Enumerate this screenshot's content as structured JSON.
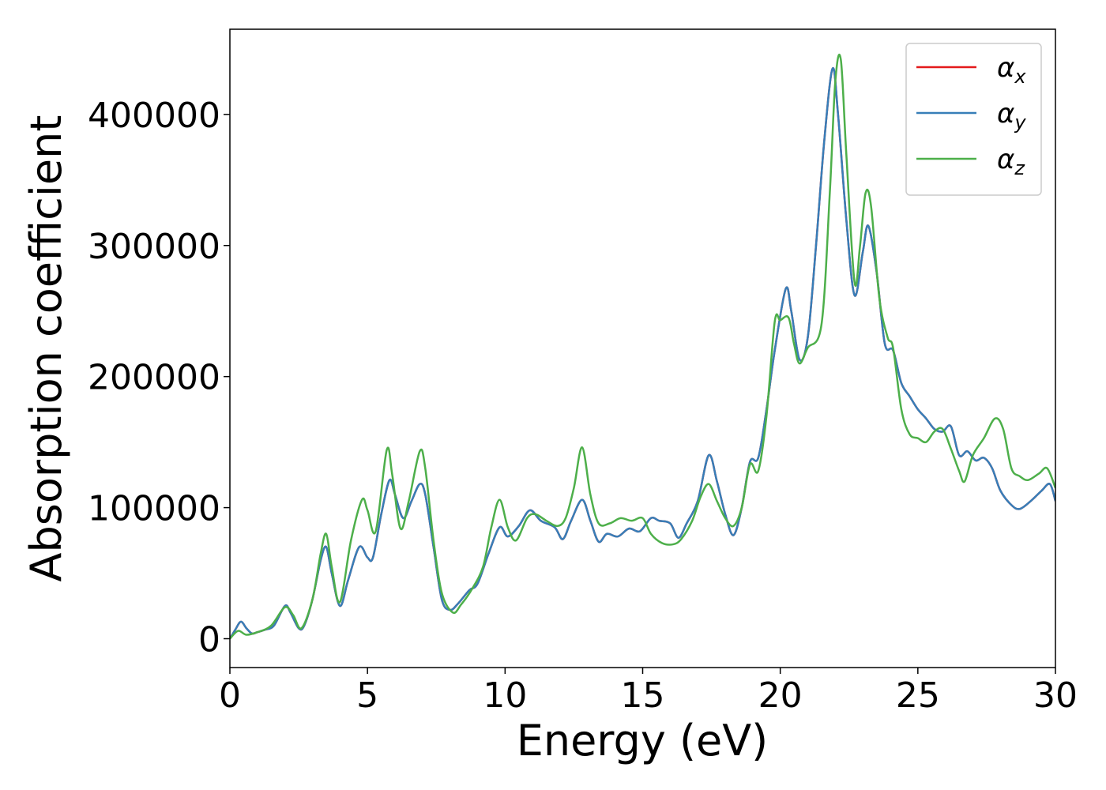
{
  "chart_data": {
    "type": "line",
    "xlabel": "Energy (eV)",
    "ylabel": "Absorption coefficient",
    "xlim": [
      0,
      30
    ],
    "ylim": [
      -22000,
      465000
    ],
    "xticks": [
      0,
      5,
      10,
      15,
      20,
      25,
      30
    ],
    "yticks": [
      0,
      100000,
      200000,
      300000,
      400000
    ],
    "legend": "upper right",
    "series": [
      {
        "name": "αx",
        "color": "#e41a1c",
        "x": [
          0,
          0.2,
          0.4,
          0.6,
          0.8,
          1.0,
          1.3,
          1.6,
          2.0,
          2.2,
          2.5,
          2.7,
          3.0,
          3.3,
          3.5,
          3.7,
          4.0,
          4.3,
          4.7,
          5.0,
          5.2,
          5.5,
          5.8,
          6.0,
          6.3,
          6.6,
          6.9,
          7.1,
          7.4,
          7.7,
          8.0,
          8.3,
          8.7,
          9.0,
          9.4,
          9.8,
          10.1,
          10.5,
          10.9,
          11.3,
          11.8,
          12.1,
          12.4,
          12.8,
          13.1,
          13.4,
          13.7,
          14.1,
          14.5,
          14.9,
          15.3,
          15.6,
          16.0,
          16.3,
          16.6,
          17.0,
          17.4,
          17.7,
          18.0,
          18.3,
          18.6,
          18.9,
          19.2,
          19.5,
          19.8,
          20.2,
          20.4,
          20.7,
          21.0,
          21.3,
          21.6,
          21.9,
          22.1,
          22.4,
          22.7,
          23.0,
          23.2,
          23.5,
          23.8,
          24.1,
          24.4,
          24.7,
          25.0,
          25.3,
          25.6,
          25.9,
          26.2,
          26.5,
          26.8,
          27.1,
          27.4,
          27.7,
          28.0,
          28.4,
          28.7,
          29.1,
          29.5,
          29.8,
          30.0
        ],
        "values": [
          0,
          7000,
          13000,
          8000,
          4000,
          5000,
          7000,
          10000,
          25000,
          20000,
          8000,
          10000,
          30000,
          60000,
          70000,
          50000,
          25000,
          45000,
          70000,
          62000,
          62000,
          95000,
          121000,
          110000,
          92000,
          105000,
          118000,
          110000,
          70000,
          30000,
          22000,
          27000,
          37000,
          42000,
          65000,
          85000,
          78000,
          86000,
          98000,
          90000,
          85000,
          76000,
          90000,
          106000,
          90000,
          74000,
          80000,
          78000,
          84000,
          82000,
          92000,
          90000,
          88000,
          77000,
          88000,
          105000,
          140000,
          120000,
          95000,
          79000,
          100000,
          135000,
          138000,
          175000,
          220000,
          267000,
          250000,
          213000,
          230000,
          300000,
          380000,
          435000,
          400000,
          320000,
          262000,
          295000,
          315000,
          280000,
          225000,
          220000,
          195000,
          185000,
          175000,
          168000,
          160000,
          158000,
          162000,
          140000,
          143000,
          136000,
          138000,
          130000,
          113000,
          102000,
          99000,
          105000,
          113000,
          118000,
          105000
        ]
      },
      {
        "name": "αy",
        "color": "#377eb8",
        "x": [
          0,
          0.2,
          0.4,
          0.6,
          0.8,
          1.0,
          1.3,
          1.6,
          2.0,
          2.2,
          2.5,
          2.7,
          3.0,
          3.3,
          3.5,
          3.7,
          4.0,
          4.3,
          4.7,
          5.0,
          5.2,
          5.5,
          5.8,
          6.0,
          6.3,
          6.6,
          6.9,
          7.1,
          7.4,
          7.7,
          8.0,
          8.3,
          8.7,
          9.0,
          9.4,
          9.8,
          10.1,
          10.5,
          10.9,
          11.3,
          11.8,
          12.1,
          12.4,
          12.8,
          13.1,
          13.4,
          13.7,
          14.1,
          14.5,
          14.9,
          15.3,
          15.6,
          16.0,
          16.3,
          16.6,
          17.0,
          17.4,
          17.7,
          18.0,
          18.3,
          18.6,
          18.9,
          19.2,
          19.5,
          19.8,
          20.2,
          20.4,
          20.7,
          21.0,
          21.3,
          21.6,
          21.9,
          22.1,
          22.4,
          22.7,
          23.0,
          23.2,
          23.5,
          23.8,
          24.1,
          24.4,
          24.7,
          25.0,
          25.3,
          25.6,
          25.9,
          26.2,
          26.5,
          26.8,
          27.1,
          27.4,
          27.7,
          28.0,
          28.4,
          28.7,
          29.1,
          29.5,
          29.8,
          30.0
        ],
        "values": [
          0,
          7000,
          13000,
          8000,
          4000,
          5000,
          7000,
          10000,
          25000,
          20000,
          8000,
          10000,
          30000,
          60000,
          70000,
          50000,
          25000,
          45000,
          70000,
          62000,
          62000,
          95000,
          121000,
          110000,
          92000,
          105000,
          118000,
          110000,
          70000,
          30000,
          22000,
          27000,
          37000,
          42000,
          65000,
          85000,
          78000,
          86000,
          98000,
          90000,
          85000,
          76000,
          90000,
          106000,
          90000,
          74000,
          80000,
          78000,
          84000,
          82000,
          92000,
          90000,
          88000,
          77000,
          88000,
          105000,
          140000,
          120000,
          95000,
          79000,
          100000,
          135000,
          138000,
          175000,
          220000,
          267000,
          250000,
          213000,
          230000,
          300000,
          380000,
          435000,
          400000,
          320000,
          262000,
          295000,
          315000,
          280000,
          225000,
          220000,
          195000,
          185000,
          175000,
          168000,
          160000,
          158000,
          162000,
          140000,
          143000,
          136000,
          138000,
          130000,
          113000,
          102000,
          99000,
          105000,
          113000,
          118000,
          105000
        ]
      },
      {
        "name": "αz",
        "color": "#4daf4a",
        "x": [
          0,
          0.3,
          0.6,
          1.0,
          1.5,
          2.0,
          2.3,
          2.6,
          3.0,
          3.3,
          3.5,
          3.7,
          4.0,
          4.4,
          4.8,
          5.0,
          5.3,
          5.7,
          5.9,
          6.2,
          6.5,
          6.9,
          7.1,
          7.4,
          7.7,
          8.1,
          8.4,
          8.8,
          9.2,
          9.5,
          9.8,
          10.1,
          10.4,
          10.8,
          11.1,
          11.5,
          11.9,
          12.2,
          12.5,
          12.8,
          13.1,
          13.4,
          13.8,
          14.2,
          14.6,
          15.0,
          15.3,
          15.7,
          16.1,
          16.4,
          16.8,
          17.1,
          17.4,
          17.7,
          18.0,
          18.3,
          18.6,
          18.9,
          19.2,
          19.5,
          19.8,
          20.0,
          20.3,
          20.5,
          20.7,
          21.0,
          21.5,
          21.8,
          22.0,
          22.2,
          22.4,
          22.7,
          22.9,
          23.1,
          23.3,
          23.6,
          23.9,
          24.1,
          24.4,
          24.7,
          25.0,
          25.3,
          25.6,
          25.9,
          26.2,
          26.5,
          26.7,
          27.0,
          27.4,
          27.8,
          28.1,
          28.4,
          28.7,
          29.0,
          29.4,
          29.7,
          30.0
        ],
        "values": [
          0,
          6000,
          3000,
          5000,
          10000,
          24000,
          18000,
          8000,
          30000,
          65000,
          80000,
          55000,
          28000,
          75000,
          106000,
          98000,
          82000,
          144000,
          125000,
          84000,
          105000,
          143000,
          130000,
          75000,
          35000,
          20000,
          26000,
          38000,
          55000,
          85000,
          106000,
          85000,
          75000,
          92000,
          95000,
          90000,
          86000,
          92000,
          115000,
          146000,
          110000,
          88000,
          88000,
          92000,
          90000,
          92000,
          80000,
          73000,
          72000,
          76000,
          90000,
          108000,
          118000,
          105000,
          92000,
          86000,
          100000,
          133000,
          128000,
          170000,
          242000,
          243000,
          245000,
          225000,
          210000,
          222000,
          240000,
          340000,
          425000,
          442000,
          370000,
          272000,
          300000,
          340000,
          330000,
          260000,
          230000,
          222000,
          175000,
          156000,
          153000,
          150000,
          158000,
          160000,
          145000,
          128000,
          120000,
          140000,
          153000,
          168000,
          160000,
          130000,
          124000,
          121000,
          126000,
          130000,
          115000
        ]
      }
    ]
  }
}
